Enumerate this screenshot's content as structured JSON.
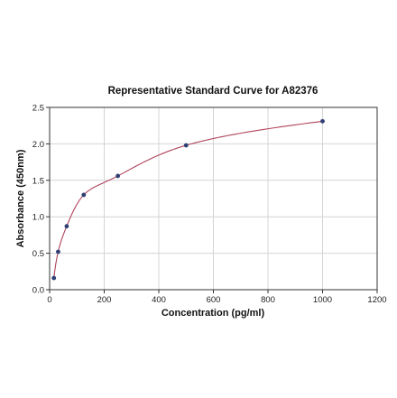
{
  "chart_data": {
    "type": "scatter",
    "title": "Representative Standard Curve for A82376",
    "xlabel": "Concentration (pg/ml)",
    "ylabel": "Absorbance (450nm)",
    "xlim": [
      0,
      1200
    ],
    "ylim": [
      0,
      2.5
    ],
    "xticks": [
      0,
      200,
      400,
      600,
      800,
      1000,
      1200
    ],
    "yticks": [
      0.0,
      0.5,
      1.0,
      1.5,
      2.0,
      2.5
    ],
    "xtick_labels": [
      "0",
      "200",
      "400",
      "600",
      "800",
      "1000",
      "1200"
    ],
    "ytick_labels": [
      "0.0",
      "0.5",
      "1.0",
      "1.5",
      "2.0",
      "2.5"
    ],
    "grid": true,
    "legend": "none",
    "series": [
      {
        "kind": "points",
        "x": [
          15.6,
          31.25,
          62.5,
          125,
          250,
          500,
          1000
        ],
        "y": [
          0.16,
          0.52,
          0.87,
          1.3,
          1.56,
          1.98,
          2.31
        ],
        "color": "#2f3f73"
      },
      {
        "kind": "fitted-curve",
        "x_range": [
          15.6,
          1000
        ],
        "color": "#b0445c"
      }
    ]
  }
}
